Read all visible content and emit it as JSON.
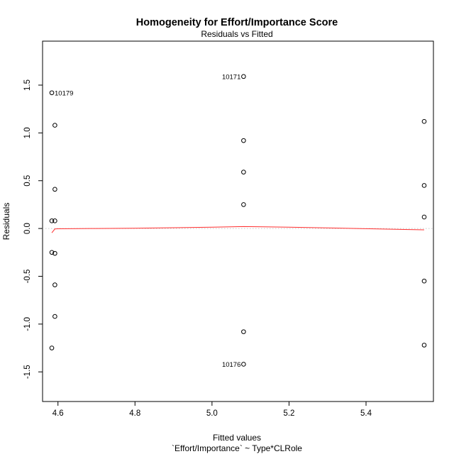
{
  "chart_data": {
    "type": "scatter",
    "title": "Homogeneity for Effort/Importance Score",
    "subtitle": "Residuals vs Fitted",
    "xlabel": "Fitted values",
    "xlabel_sub": "`Effort/Importance` ~ Type*CLRole",
    "ylabel": "Residuals",
    "xlim": [
      4.56,
      5.575
    ],
    "ylim": [
      -1.81,
      1.96
    ],
    "x_ticks": [
      4.6,
      4.8,
      5.0,
      5.2,
      5.4
    ],
    "x_tick_labels": [
      "4.6",
      "4.8",
      "5.0",
      "5.2",
      "5.4"
    ],
    "y_ticks": [
      -1.5,
      -1.0,
      -0.5,
      0.0,
      0.5,
      1.0,
      1.5
    ],
    "y_tick_labels": [
      "-1.5",
      "-1.0",
      "-0.5",
      "0.0",
      "0.5",
      "1.0",
      "1.5"
    ],
    "grid": false,
    "reference_line": {
      "y": 0,
      "style": "dotted",
      "color": "#c8c8c8"
    },
    "points": [
      {
        "x": 4.584,
        "y": 1.42
      },
      {
        "x": 4.592,
        "y": 1.08
      },
      {
        "x": 4.592,
        "y": 0.41
      },
      {
        "x": 4.584,
        "y": 0.08
      },
      {
        "x": 4.592,
        "y": 0.08
      },
      {
        "x": 4.584,
        "y": -0.25
      },
      {
        "x": 4.592,
        "y": -0.26
      },
      {
        "x": 4.592,
        "y": -0.59
      },
      {
        "x": 4.592,
        "y": -0.92
      },
      {
        "x": 4.584,
        "y": -1.25
      },
      {
        "x": 5.082,
        "y": 1.59
      },
      {
        "x": 5.082,
        "y": 0.92
      },
      {
        "x": 5.082,
        "y": 0.59
      },
      {
        "x": 5.082,
        "y": 0.25
      },
      {
        "x": 5.082,
        "y": -1.08
      },
      {
        "x": 5.082,
        "y": -1.42
      },
      {
        "x": 5.551,
        "y": 1.12
      },
      {
        "x": 5.551,
        "y": 0.45
      },
      {
        "x": 5.551,
        "y": 0.12
      },
      {
        "x": 5.551,
        "y": -0.55
      },
      {
        "x": 5.551,
        "y": -1.22
      }
    ],
    "point_labels": [
      {
        "text": "10179",
        "x": 4.584,
        "y": 1.42,
        "side": "right"
      },
      {
        "text": "10171",
        "x": 5.082,
        "y": 1.59,
        "side": "left"
      },
      {
        "text": "10176",
        "x": 5.082,
        "y": -1.42,
        "side": "left"
      }
    ],
    "smoother": {
      "color": "#ff3030",
      "x": [
        4.584,
        4.592,
        4.6,
        4.7,
        4.8,
        4.9,
        5.0,
        5.082,
        5.2,
        5.3,
        5.4,
        5.5,
        5.551
      ],
      "y": [
        -0.045,
        -0.005,
        -0.003,
        0.0,
        0.003,
        0.008,
        0.014,
        0.02,
        0.014,
        0.006,
        -0.002,
        -0.01,
        -0.014
      ]
    }
  }
}
